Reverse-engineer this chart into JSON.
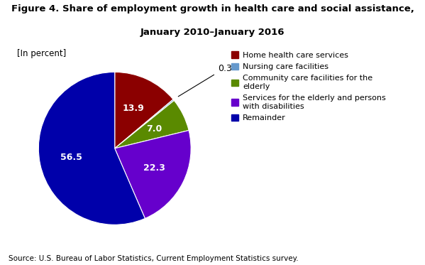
{
  "title_line1": "Figure 4. Share of employment growth in health care and social assistance,",
  "title_line2": "January 2010–January 2016",
  "subtitle": "[In percent]",
  "slices": [
    13.9,
    0.3,
    7.0,
    22.3,
    56.5
  ],
  "legend_labels": [
    "Home health care services",
    "Nursing care facilities",
    "Community care facilities for the\nelderly",
    "Services for the elderly and persons\nwith disabilities",
    "Remainder"
  ],
  "colors": [
    "#8B0000",
    "#6699CC",
    "#5A8A00",
    "#6600CC",
    "#0000AA"
  ],
  "inside_labels": [
    "13.9",
    "",
    "7.0",
    "22.3",
    "56.5"
  ],
  "source": "Source: U.S. Bureau of Labor Statistics, Current Employment Statistics survey."
}
